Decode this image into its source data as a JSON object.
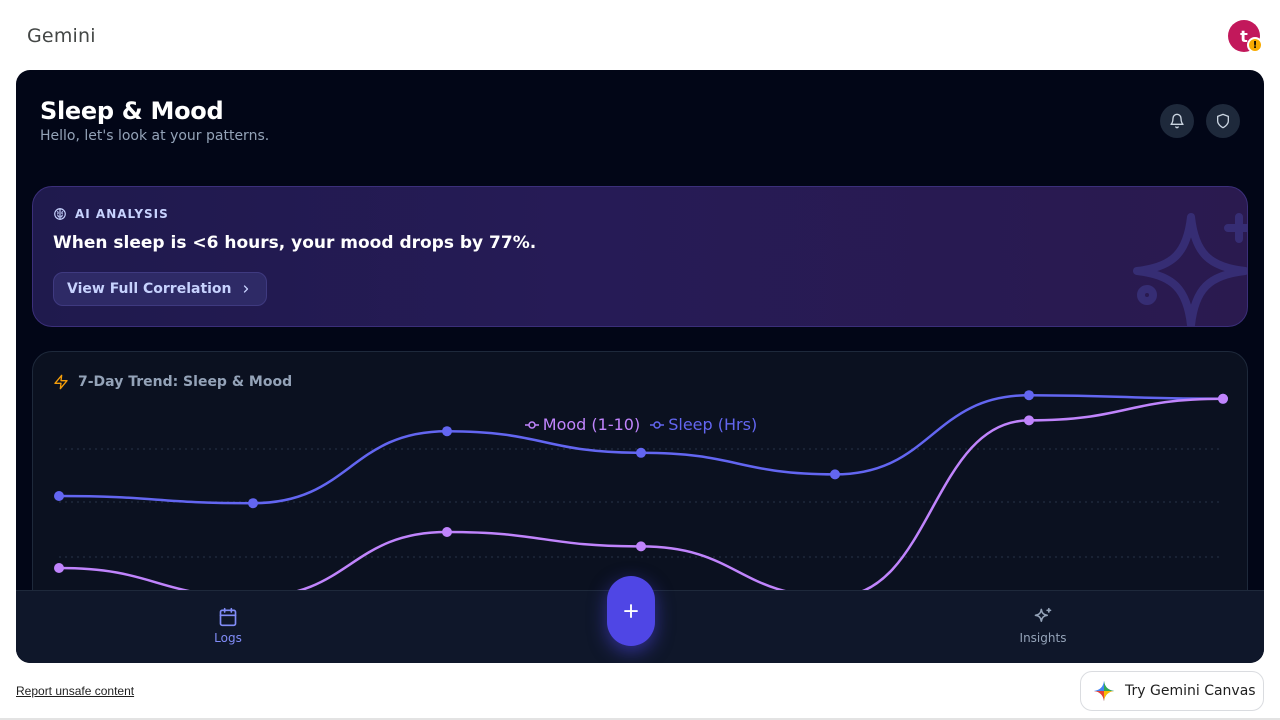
{
  "header": {
    "brand": "Gemini",
    "avatar_initial": "t",
    "avatar_warning": "!"
  },
  "app": {
    "title": "Sleep & Mood",
    "subtitle": "Hello, let's look at your patterns.",
    "icons": [
      "bell-icon",
      "shield-icon"
    ]
  },
  "ai_card": {
    "label": "AI ANALYSIS",
    "text": "When sleep is <6 hours, your mood drops by 77%.",
    "button_label": "View Full Correlation"
  },
  "chart": {
    "title": "7-Day Trend: Sleep & Mood",
    "legend": [
      {
        "name": "Mood (1-10)",
        "color": "#c084fc"
      },
      {
        "name": "Sleep (Hrs)",
        "color": "#6366f1"
      }
    ]
  },
  "chart_data": {
    "type": "line",
    "x": [
      1,
      2,
      3,
      4,
      5,
      6,
      7
    ],
    "series": [
      {
        "name": "Mood (1-10)",
        "values": [
          4,
          3.2,
          5,
          4.6,
          3.2,
          8.1,
          8.7
        ]
      },
      {
        "name": "Sleep (Hrs)",
        "values": [
          6,
          5.8,
          7.8,
          7.2,
          6.6,
          8.8,
          8.7
        ]
      }
    ],
    "ylim": [
      0,
      10
    ],
    "grid": true,
    "legend_position": "top-center"
  },
  "bottom_nav": {
    "logs_label": "Logs",
    "insights_label": "Insights",
    "fab_icon": "plus-icon"
  },
  "footer": {
    "report_link": "Report unsafe content",
    "canvas_button": "Try Gemini Canvas"
  },
  "colors": {
    "accent": "#4f46e5",
    "mood": "#c084fc",
    "sleep": "#6366f1",
    "background": "#020617"
  }
}
